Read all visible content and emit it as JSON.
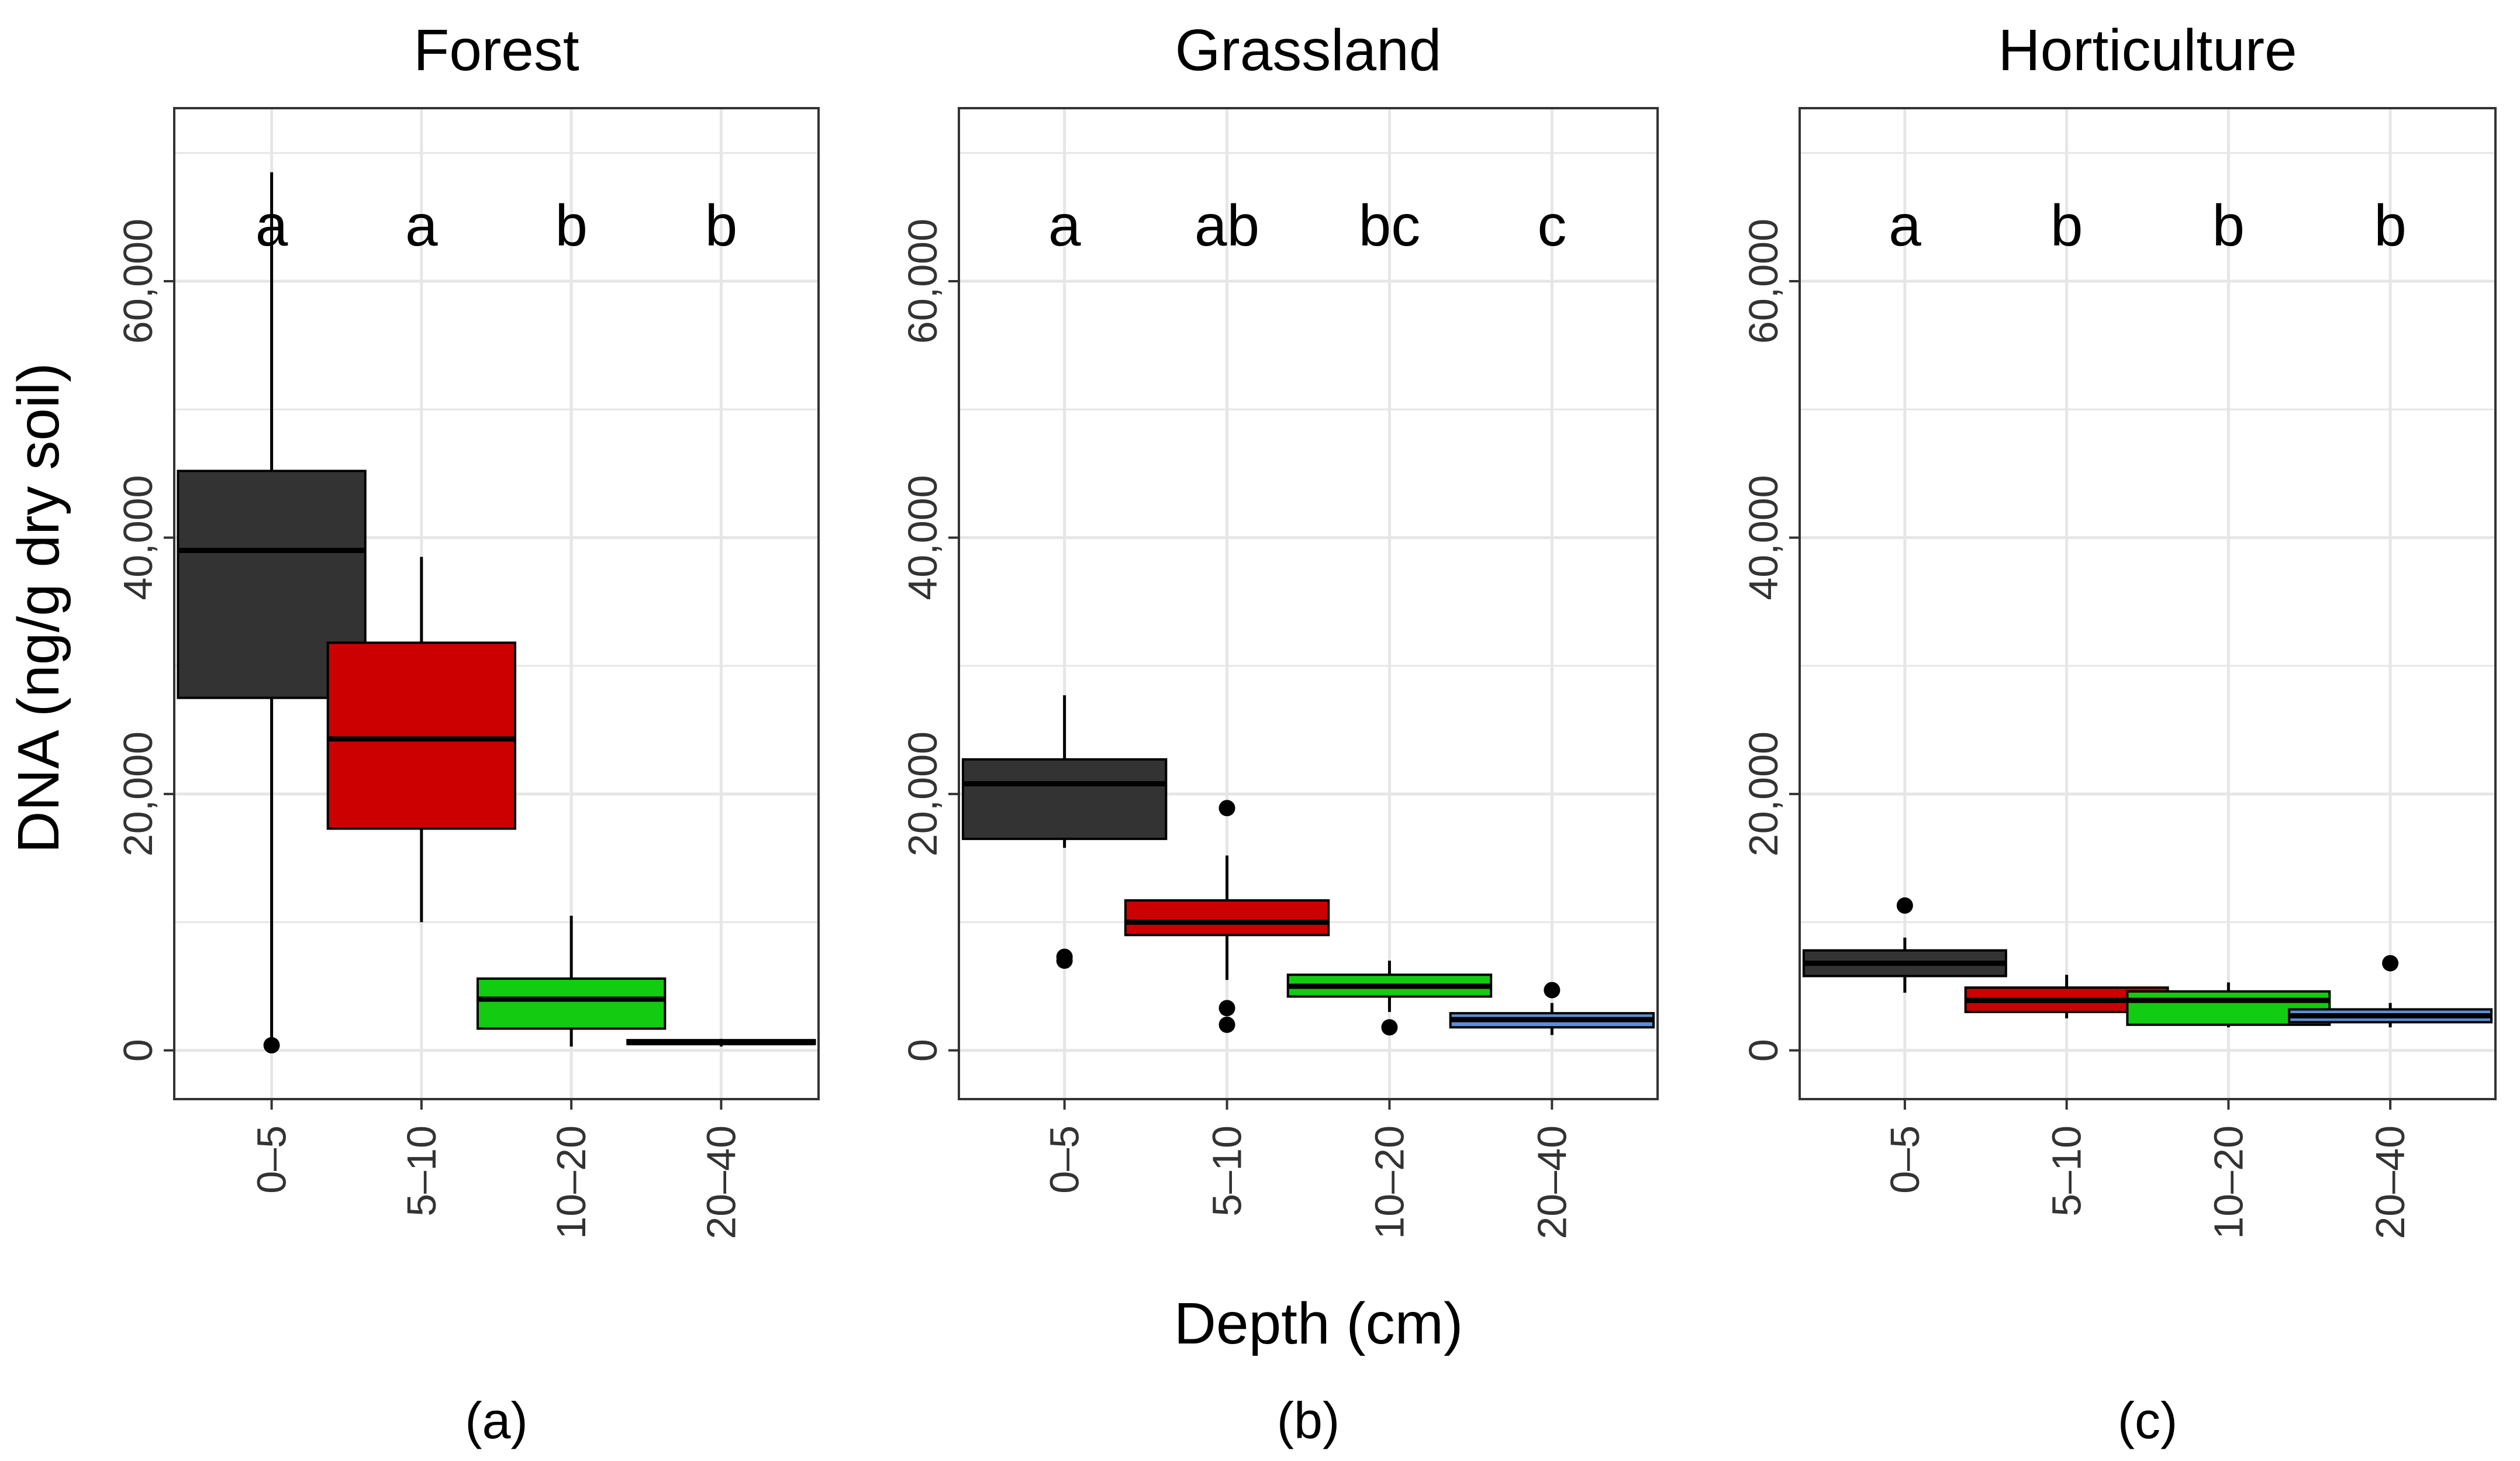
{
  "figure": {
    "ylabel": "DNA (ng/g dry soil)",
    "xlabel": "Depth (cm)",
    "colors": {
      "0–5": "#333333",
      "5–10": "#cc0000",
      "10–20": "#11cc11",
      "20–40": "#5b8fd6",
      "grid": "#e6e6e6",
      "frame": "#333333"
    }
  },
  "chart_data": [
    {
      "type": "boxplot",
      "title": "Forest",
      "panel_label": "(a)",
      "xlabel": "Depth (cm)",
      "ylabel": "DNA (ng/g dry soil)",
      "ylim": [
        -3800,
        73500
      ],
      "yticks": [
        0,
        20000,
        40000,
        60000
      ],
      "ytick_labels": [
        "0",
        "20,000",
        "40,000",
        "60,000"
      ],
      "categories": [
        "0–5",
        "5–10",
        "10–20",
        "20–40"
      ],
      "boxes": [
        {
          "min": 0,
          "q1": 27500,
          "median": 39000,
          "q3": 45200,
          "max": 68500,
          "outliers": [
            400
          ]
        },
        {
          "min": 10000,
          "q1": 17300,
          "median": 24300,
          "q3": 31800,
          "max": 38500,
          "outliers": []
        },
        {
          "min": 300,
          "q1": 1700,
          "median": 4000,
          "q3": 5600,
          "max": 10500,
          "outliers": []
        },
        {
          "min": 300,
          "q1": 500,
          "median": 600,
          "q3": 800,
          "max": 900,
          "outliers": []
        }
      ],
      "significance": [
        "a",
        "a",
        "b",
        "b"
      ]
    },
    {
      "type": "boxplot",
      "title": "Grassland",
      "panel_label": "(b)",
      "xlabel": "Depth (cm)",
      "ylabel": "DNA (ng/g dry soil)",
      "ylim": [
        -3800,
        73500
      ],
      "yticks": [
        0,
        20000,
        40000,
        60000
      ],
      "ytick_labels": [
        "0",
        "20,000",
        "40,000",
        "60,000"
      ],
      "categories": [
        "0–5",
        "5–10",
        "10–20",
        "20–40"
      ],
      "boxes": [
        {
          "min": 15800,
          "q1": 16500,
          "median": 20800,
          "q3": 22700,
          "max": 27700,
          "outliers": [
            7000,
            7300
          ]
        },
        {
          "min": 5500,
          "q1": 9000,
          "median": 10000,
          "q3": 11700,
          "max": 15200,
          "outliers": [
            18900,
            3300,
            2000
          ]
        },
        {
          "min": 3000,
          "q1": 4200,
          "median": 5000,
          "q3": 5900,
          "max": 7000,
          "outliers": [
            1800
          ]
        },
        {
          "min": 1200,
          "q1": 1800,
          "median": 2400,
          "q3": 2900,
          "max": 3700,
          "outliers": [
            4700
          ]
        }
      ],
      "significance": [
        "a",
        "ab",
        "bc",
        "c"
      ]
    },
    {
      "type": "boxplot",
      "title": "Horticulture",
      "panel_label": "(c)",
      "xlabel": "Depth (cm)",
      "ylabel": "DNA (ng/g dry soil)",
      "ylim": [
        -3800,
        73500
      ],
      "yticks": [
        0,
        20000,
        40000,
        60000
      ],
      "ytick_labels": [
        "0",
        "20,000",
        "40,000",
        "60,000"
      ],
      "categories": [
        "0–5",
        "5–10",
        "10–20",
        "20–40"
      ],
      "boxes": [
        {
          "min": 4500,
          "q1": 5800,
          "median": 6800,
          "q3": 7800,
          "max": 8800,
          "outliers": [
            11300
          ]
        },
        {
          "min": 2500,
          "q1": 3000,
          "median": 3900,
          "q3": 4900,
          "max": 5900,
          "outliers": []
        },
        {
          "min": 1800,
          "q1": 2000,
          "median": 3900,
          "q3": 4600,
          "max": 5300,
          "outliers": []
        },
        {
          "min": 1800,
          "q1": 2200,
          "median": 2700,
          "q3": 3200,
          "max": 3700,
          "outliers": [
            6800
          ]
        }
      ],
      "significance": [
        "a",
        "b",
        "b",
        "b"
      ]
    }
  ]
}
